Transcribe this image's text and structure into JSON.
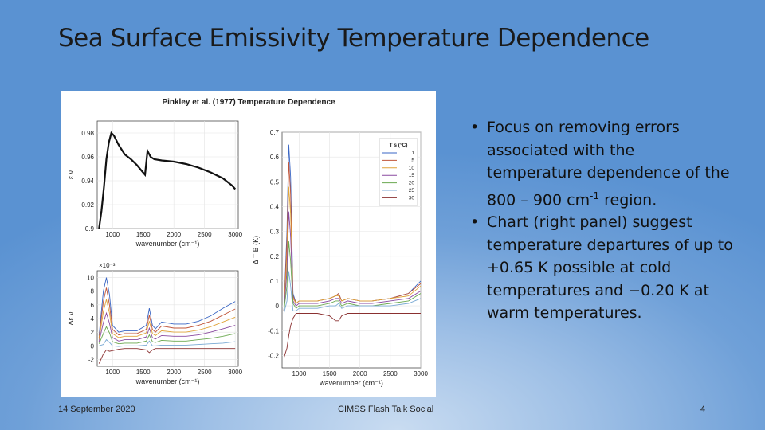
{
  "slide": {
    "title": "Sea Surface Emissivity Temperature Dependence",
    "bullets": [
      {
        "pre": "Focus on removing errors associated with the temperature dependence of the 800 – 900 cm",
        "sup": "-1",
        "post": " region."
      },
      {
        "pre": "Chart (right panel) suggest temperature departures of up to +0.65 K possible at cold temperatures and −0.20 K at warm temperatures.",
        "sup": "",
        "post": ""
      }
    ]
  },
  "footer": {
    "date": "14 September 2020",
    "center": "CIMSS Flash Talk Social",
    "page": "4"
  },
  "figure": {
    "title": "Pinkley et al. (1977) Temperature Dependence",
    "colors": [
      "#3a66c4",
      "#c0553a",
      "#e0a43a",
      "#8a4aa0",
      "#6aa84f",
      "#7aaad4",
      "#8a3030"
    ]
  },
  "chart_data": [
    {
      "type": "line",
      "id": "emissivity",
      "xlabel": "wavenumber (cm⁻¹)",
      "ylabel": "ε ν",
      "xlim": [
        750,
        3050
      ],
      "ylim": [
        0.9,
        0.99
      ],
      "xticks": [
        "1000",
        "1500",
        "2000",
        "2500",
        "3000"
      ],
      "yticks": [
        "0.9",
        "0.92",
        "0.94",
        "0.96",
        "0.98"
      ],
      "x": [
        780,
        820,
        860,
        900,
        940,
        980,
        1020,
        1100,
        1200,
        1300,
        1400,
        1480,
        1530,
        1570,
        1620,
        1680,
        1800,
        2000,
        2200,
        2400,
        2600,
        2800,
        2950,
        3000
      ],
      "y": [
        0.9,
        0.915,
        0.935,
        0.958,
        0.972,
        0.98,
        0.978,
        0.97,
        0.962,
        0.958,
        0.953,
        0.948,
        0.945,
        0.965,
        0.96,
        0.958,
        0.957,
        0.956,
        0.954,
        0.951,
        0.947,
        0.942,
        0.936,
        0.933
      ]
    },
    {
      "type": "line",
      "id": "delta-emissivity",
      "xlabel": "wavenumber (cm⁻¹)",
      "ylabel": "Δε ν",
      "exponent_label": "×10⁻³",
      "xlim": [
        750,
        3050
      ],
      "ylim": [
        -3,
        11
      ],
      "xticks": [
        "1000",
        "1500",
        "2000",
        "2500",
        "3000"
      ],
      "yticks": [
        "-2",
        "0",
        "2",
        "4",
        "6",
        "8",
        "10"
      ],
      "x": [
        780,
        850,
        900,
        950,
        1000,
        1100,
        1200,
        1400,
        1550,
        1600,
        1650,
        1700,
        1800,
        2000,
        2200,
        2400,
        2600,
        2800,
        3000
      ],
      "series": [
        {
          "name": "1",
          "values": [
            1.5,
            8.0,
            10.0,
            7.5,
            3.0,
            2.0,
            2.2,
            2.2,
            3.0,
            5.5,
            3.0,
            2.5,
            3.5,
            3.2,
            3.2,
            3.6,
            4.4,
            5.5,
            6.5
          ]
        },
        {
          "name": "5",
          "values": [
            1.2,
            6.5,
            8.5,
            6.0,
            2.4,
            1.6,
            1.8,
            1.8,
            2.4,
            4.5,
            2.4,
            2.0,
            2.9,
            2.6,
            2.6,
            3.0,
            3.6,
            4.5,
            5.4
          ]
        },
        {
          "name": "10",
          "values": [
            0.9,
            5.0,
            6.8,
            4.8,
            1.8,
            1.2,
            1.4,
            1.4,
            1.9,
            3.6,
            1.8,
            1.5,
            2.2,
            2.0,
            2.0,
            2.3,
            2.8,
            3.5,
            4.2
          ]
        },
        {
          "name": "15",
          "values": [
            0.6,
            3.4,
            4.8,
            3.3,
            1.2,
            0.7,
            0.9,
            0.9,
            1.3,
            2.6,
            1.2,
            1.0,
            1.5,
            1.4,
            1.4,
            1.6,
            2.0,
            2.5,
            3.0
          ]
        },
        {
          "name": "20",
          "values": [
            0.3,
            1.8,
            2.8,
            1.9,
            0.6,
            0.3,
            0.4,
            0.4,
            0.7,
            1.6,
            0.6,
            0.5,
            0.8,
            0.7,
            0.7,
            0.9,
            1.1,
            1.4,
            1.8
          ]
        },
        {
          "name": "25",
          "values": [
            0.0,
            0.2,
            0.9,
            0.5,
            0.0,
            -0.1,
            0.0,
            0.0,
            0.1,
            0.7,
            0.0,
            0.0,
            0.1,
            0.1,
            0.1,
            0.2,
            0.3,
            0.4,
            0.6
          ]
        },
        {
          "name": "30",
          "values": [
            -2.6,
            -1.2,
            -0.6,
            -0.8,
            -0.7,
            -0.5,
            -0.4,
            -0.4,
            -0.6,
            -1.0,
            -0.6,
            -0.4,
            -0.4,
            -0.4,
            -0.4,
            -0.4,
            -0.4,
            -0.4,
            -0.4
          ]
        }
      ]
    },
    {
      "type": "line",
      "id": "delta-brightness-temperature",
      "xlabel": "wavenumber (cm⁻¹)",
      "ylabel": "Δ T B (K)",
      "legend_title": "T s (°C)",
      "legend": [
        "1",
        "5",
        "10",
        "15",
        "20",
        "25",
        "30"
      ],
      "xlim": [
        720,
        3000
      ],
      "ylim": [
        -0.25,
        0.7
      ],
      "xticks": [
        "1000",
        "1500",
        "2000",
        "2500",
        "3000"
      ],
      "yticks": [
        "-0.2",
        "-0.1",
        "0",
        "0.1",
        "0.2",
        "0.3",
        "0.4",
        "0.5",
        "0.6",
        "0.7"
      ],
      "x": [
        750,
        800,
        830,
        860,
        900,
        950,
        1000,
        1100,
        1300,
        1500,
        1600,
        1650,
        1700,
        1800,
        2000,
        2200,
        2500,
        2800,
        3000
      ],
      "series": [
        {
          "name": "1",
          "values": [
            -0.02,
            0.3,
            0.65,
            0.52,
            0.05,
            0.01,
            0.02,
            0.02,
            0.02,
            0.03,
            0.04,
            0.05,
            0.02,
            0.03,
            0.02,
            0.02,
            0.03,
            0.05,
            0.1
          ]
        },
        {
          "name": "5",
          "values": [
            -0.02,
            0.26,
            0.58,
            0.45,
            0.04,
            0.01,
            0.02,
            0.02,
            0.02,
            0.03,
            0.04,
            0.05,
            0.02,
            0.03,
            0.02,
            0.02,
            0.03,
            0.05,
            0.09
          ]
        },
        {
          "name": "10",
          "values": [
            -0.02,
            0.2,
            0.48,
            0.37,
            0.03,
            0.01,
            0.02,
            0.02,
            0.02,
            0.03,
            0.04,
            0.04,
            0.02,
            0.03,
            0.02,
            0.02,
            0.03,
            0.04,
            0.08
          ]
        },
        {
          "name": "15",
          "values": [
            -0.02,
            0.14,
            0.38,
            0.28,
            0.02,
            0.0,
            0.01,
            0.01,
            0.01,
            0.02,
            0.03,
            0.03,
            0.01,
            0.02,
            0.01,
            0.01,
            0.02,
            0.03,
            0.06
          ]
        },
        {
          "name": "20",
          "values": [
            -0.02,
            0.08,
            0.26,
            0.18,
            0.01,
            -0.01,
            0.0,
            0.0,
            0.0,
            0.01,
            0.02,
            0.02,
            0.0,
            0.01,
            0.0,
            0.0,
            0.01,
            0.02,
            0.05
          ]
        },
        {
          "name": "25",
          "values": [
            -0.03,
            0.02,
            0.14,
            0.08,
            -0.02,
            -0.02,
            -0.01,
            -0.01,
            -0.01,
            0.0,
            0.0,
            0.01,
            -0.01,
            0.0,
            0.0,
            0.0,
            0.0,
            0.01,
            0.03
          ]
        },
        {
          "name": "30",
          "values": [
            -0.21,
            -0.17,
            -0.12,
            -0.08,
            -0.05,
            -0.03,
            -0.03,
            -0.03,
            -0.03,
            -0.04,
            -0.06,
            -0.06,
            -0.04,
            -0.03,
            -0.03,
            -0.03,
            -0.03,
            -0.03,
            -0.03
          ]
        }
      ]
    }
  ]
}
